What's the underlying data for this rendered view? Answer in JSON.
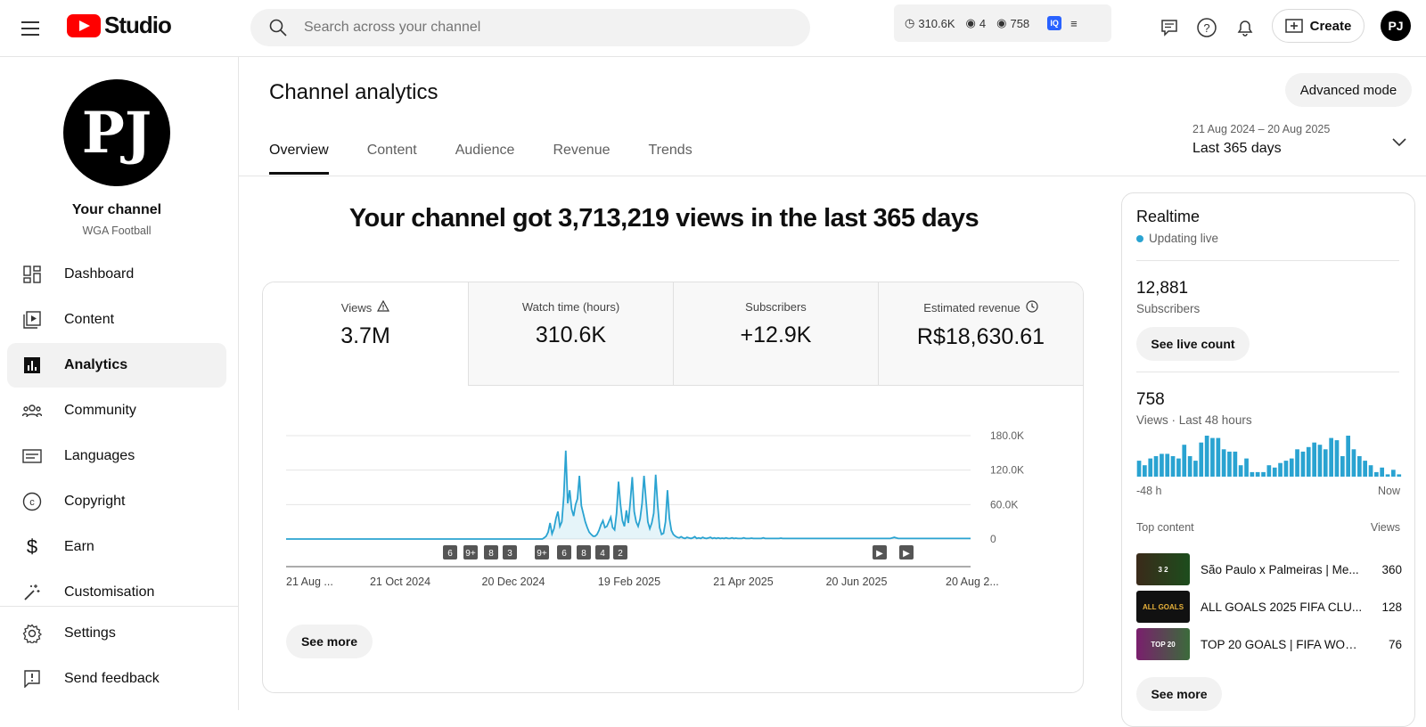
{
  "app": {
    "logo_text": "Studio",
    "brand_color": "#ff0000"
  },
  "search": {
    "placeholder": "Search across your channel"
  },
  "ext_bar": {
    "watch": "310.6K",
    "viewers": "4",
    "views48": "758",
    "badge": "IQ"
  },
  "header": {
    "create_label": "Create",
    "avatar_initials": "PJ"
  },
  "channel": {
    "title": "Your channel",
    "name": "WGA Football",
    "avatar_initials": "PJ"
  },
  "sidebar": {
    "items": [
      {
        "label": "Dashboard",
        "icon": "dashboard-icon"
      },
      {
        "label": "Content",
        "icon": "content-icon"
      },
      {
        "label": "Analytics",
        "icon": "analytics-icon",
        "active": true
      },
      {
        "label": "Community",
        "icon": "community-icon"
      },
      {
        "label": "Languages",
        "icon": "languages-icon"
      },
      {
        "label": "Copyright",
        "icon": "copyright-icon"
      },
      {
        "label": "Earn",
        "icon": "earn-icon"
      },
      {
        "label": "Customisation",
        "icon": "customisation-icon"
      },
      {
        "label": "Settings",
        "icon": "gear-icon"
      },
      {
        "label": "Send feedback",
        "icon": "feedback-icon"
      }
    ]
  },
  "main": {
    "title": "Channel analytics",
    "advanced_mode": "Advanced mode",
    "date_range": {
      "dates": "21 Aug 2024 – 20 Aug 2025",
      "label": "Last 365 days"
    },
    "tabs": [
      {
        "label": "Overview",
        "active": true
      },
      {
        "label": "Content"
      },
      {
        "label": "Audience"
      },
      {
        "label": "Revenue"
      },
      {
        "label": "Trends"
      }
    ],
    "headline": "Your channel got 3,713,219 views in the last 365 days",
    "metrics": [
      {
        "label": "Views",
        "value": "3.7M",
        "icon": "warning-icon"
      },
      {
        "label": "Watch time (hours)",
        "value": "310.6K"
      },
      {
        "label": "Subscribers",
        "value": "+12.9K"
      },
      {
        "label": "Estimated revenue",
        "value": "R$18,630.61",
        "icon": "clock-icon"
      }
    ],
    "see_more": "See more"
  },
  "chart_data": {
    "type": "area",
    "title": "",
    "xlabel": "",
    "ylabel": "",
    "ylim": [
      0,
      180000
    ],
    "yticks": [
      "180.0K",
      "120.0K",
      "60.0K",
      "0"
    ],
    "x_tick_labels": [
      "21 Aug ...",
      "21 Oct 2024",
      "20 Dec 2024",
      "19 Feb 2025",
      "21 Apr 2025",
      "20 Jun 2025",
      "20 Aug 2..."
    ],
    "line_color": "#2aa3d1",
    "series": [
      {
        "values": [
          0,
          0,
          0,
          0,
          0,
          0,
          0,
          0,
          0,
          0,
          0,
          0,
          0,
          0,
          0,
          0,
          0,
          0,
          0,
          0,
          0,
          0,
          0,
          0,
          0,
          0,
          0,
          0,
          0,
          0,
          0,
          0,
          0,
          0,
          0,
          0,
          0,
          0,
          0,
          0,
          0,
          0,
          0,
          0,
          0,
          0,
          0,
          0,
          0,
          0,
          0,
          0,
          0,
          0,
          0,
          0,
          0,
          0,
          0,
          0,
          0,
          0,
          0,
          0,
          0,
          0,
          0,
          0,
          0,
          0,
          0,
          0,
          0,
          0,
          0,
          0,
          0,
          0,
          0,
          0,
          0,
          0,
          0,
          0,
          0,
          0,
          0,
          0,
          0,
          0,
          0,
          0,
          0,
          0,
          0,
          0,
          0,
          0,
          0,
          0,
          0,
          0,
          0,
          0,
          0,
          0,
          0,
          0,
          0,
          0,
          0,
          0,
          0,
          0,
          0,
          0,
          0,
          0,
          0,
          0,
          0,
          0,
          0,
          0,
          0,
          0,
          0,
          0,
          0,
          0,
          0,
          0,
          2000,
          5000,
          12000,
          28000,
          9000,
          18000,
          36000,
          48000,
          22000,
          30000,
          75000,
          154000,
          62000,
          85000,
          52000,
          40000,
          60000,
          70000,
          110000,
          58000,
          44000,
          30000,
          20000,
          12000,
          8000,
          5000,
          5000,
          8000,
          15000,
          25000,
          32000,
          20000,
          22000,
          30000,
          38000,
          20000,
          16000,
          45000,
          100000,
          60000,
          32000,
          22000,
          50000,
          28000,
          65000,
          108000,
          48000,
          30000,
          22000,
          35000,
          62000,
          110000,
          70000,
          30000,
          18000,
          28000,
          45000,
          112000,
          60000,
          20000,
          8000,
          10000,
          30000,
          85000,
          36000,
          15000,
          8000,
          5000,
          3000,
          2000,
          4000,
          2000,
          1000,
          3000,
          2000,
          1000,
          2000,
          4000,
          1000,
          2000,
          1000,
          3000,
          1500,
          1000,
          2000,
          3000,
          1000,
          2000,
          1000,
          2000,
          1000,
          1500,
          1000,
          2000,
          1000,
          1000,
          2000,
          1000,
          1500,
          1000,
          1000,
          1000,
          2000,
          1000,
          1000,
          1000,
          1500,
          1000,
          1000,
          1000,
          1000,
          1000,
          2000,
          1000,
          1000,
          1000,
          1000,
          1000,
          1000,
          1000,
          1000,
          1500,
          1000,
          1000,
          1000,
          1000,
          1000,
          1000,
          1000,
          1000,
          1000,
          1000,
          1000,
          1000,
          1000,
          1000,
          1000,
          1000,
          1000,
          1000,
          1000,
          1000,
          1000,
          1000,
          1000,
          1000,
          1000,
          1000,
          1000,
          1000,
          1000,
          1000,
          1000,
          1000,
          1000,
          1000,
          1000,
          1000,
          1000,
          1000,
          1000,
          1000,
          1000,
          1000,
          1000,
          1000,
          1000,
          1000,
          1000,
          1000,
          1000,
          1000,
          1000,
          1000,
          1000,
          1000,
          1000,
          1000,
          2000,
          3000,
          2000,
          1000,
          1000,
          1000,
          1000,
          1000,
          1000,
          1000,
          1000,
          1000,
          1000,
          1000,
          1000,
          1000,
          1000,
          1000,
          1000,
          1000,
          1000,
          1000,
          1000,
          1000,
          1000,
          1000,
          1000,
          1000,
          1000,
          1000,
          1000,
          1000,
          1000,
          1000,
          1000,
          1000,
          1000,
          1000,
          1000,
          1000,
          1000
        ]
      }
    ],
    "markers": [
      "6",
      "9+",
      "8",
      "3",
      "9+",
      "6",
      "8",
      "4",
      "2",
      "▶",
      "▶"
    ]
  },
  "realtime": {
    "title": "Realtime",
    "status": "Updating live",
    "subs_value": "12,881",
    "subs_label": "Subscribers",
    "live_btn": "See live count",
    "views_value": "758",
    "views_label": "Views · Last 48 hours",
    "range_start": "-48 h",
    "range_end": "Now",
    "bars": [
      14,
      10,
      16,
      18,
      20,
      20,
      18,
      16,
      28,
      18,
      14,
      30,
      36,
      34,
      34,
      24,
      22,
      22,
      10,
      16,
      4,
      4,
      4,
      10,
      8,
      12,
      14,
      16,
      24,
      22,
      26,
      30,
      28,
      24,
      34,
      32,
      18,
      36,
      24,
      18,
      14,
      10,
      4,
      8,
      2,
      6,
      2
    ],
    "top_content_label": "Top content",
    "views_col_label": "Views",
    "top_content": [
      {
        "title": "São Paulo x Palmeiras | Me...",
        "views": "360",
        "thumb_text": "3 2"
      },
      {
        "title": "ALL GOALS 2025 FIFA CLU...",
        "views": "128",
        "thumb_text": "ALL GOALS"
      },
      {
        "title": "TOP 20 GOALS | FIFA WORL...",
        "views": "76",
        "thumb_text": "TOP 20"
      }
    ],
    "see_more": "See more"
  }
}
